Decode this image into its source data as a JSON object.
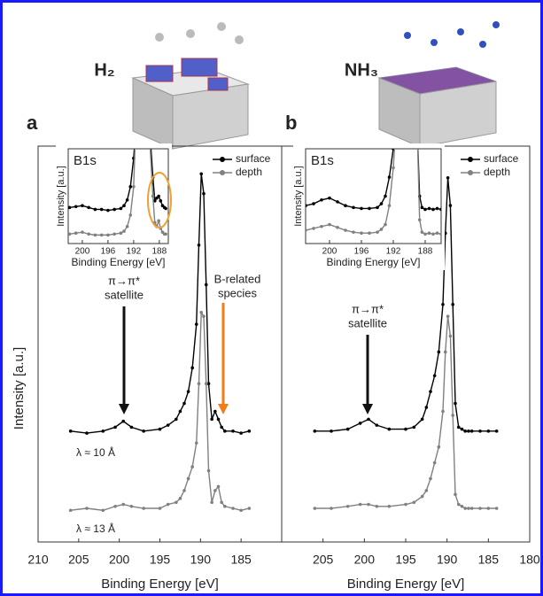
{
  "chart_data": [
    {
      "type": "line",
      "title": "a",
      "header": "H₂",
      "xlabel": "Binding Energy [eV]",
      "ylabel": "Intensity [a.u.]",
      "xlim": [
        210,
        180
      ],
      "ylim": [
        0,
        100
      ],
      "xticks": [
        210,
        205,
        200,
        195,
        190,
        185
      ],
      "annotations": [
        "π→π*",
        "satellite",
        "B-related",
        "species",
        "λ ≈ 10 Å",
        "λ ≈ 13 Å"
      ],
      "x": [
        206,
        204,
        202,
        200.5,
        199.5,
        198.5,
        197,
        195,
        194,
        193,
        192.5,
        192,
        191.5,
        191,
        190.5,
        190.2,
        189.9,
        189.6,
        189.3,
        189,
        188.6,
        188.2,
        187.8,
        187.4,
        187,
        186,
        185,
        184
      ],
      "series": [
        {
          "name": "surface",
          "color": "#000000",
          "values": [
            28,
            27.5,
            28,
            29,
            30.5,
            29,
            28,
            28.5,
            29.5,
            31,
            33,
            35,
            38,
            44,
            55,
            75,
            93,
            88,
            65,
            40,
            31,
            33,
            31,
            29,
            28,
            28,
            27.5,
            28
          ]
        },
        {
          "name": "depth",
          "color": "#808080",
          "values": [
            8,
            8.5,
            8,
            9,
            9.5,
            9,
            8.5,
            8.5,
            9.5,
            10,
            11,
            13,
            16,
            19,
            25,
            40,
            58,
            57,
            40,
            18,
            10,
            13,
            14,
            10,
            9,
            8.5,
            8,
            8.5
          ]
        }
      ]
    },
    {
      "type": "line",
      "title": "b",
      "header": "NH₃",
      "xlabel": "Binding Energy [eV]",
      "xlim": [
        210,
        180
      ],
      "ylim": [
        0,
        100
      ],
      "xticks": [
        205,
        200,
        195,
        190,
        185,
        180
      ],
      "annotations": [
        "π→π*",
        "satellite"
      ],
      "x": [
        206,
        204,
        202,
        200.5,
        199.5,
        198.5,
        197,
        195,
        194,
        193,
        192.5,
        192,
        191.5,
        191,
        190.5,
        190.2,
        189.9,
        189.6,
        189.3,
        189,
        188.6,
        188.2,
        187.8,
        187.4,
        187,
        186,
        185,
        184
      ],
      "series": [
        {
          "name": "surface",
          "color": "#000000",
          "values": [
            28,
            28,
            28.5,
            30,
            31,
            29.5,
            28.5,
            28.5,
            29,
            31,
            34,
            38,
            42,
            48,
            60,
            78,
            92,
            85,
            60,
            35,
            29,
            28.5,
            28,
            28,
            28,
            28,
            28,
            28
          ]
        },
        {
          "name": "depth",
          "color": "#808080",
          "values": [
            8.5,
            8.5,
            9,
            9.5,
            9.5,
            9,
            9,
            9.5,
            10,
            11.5,
            13,
            16,
            20,
            24,
            33,
            48,
            57,
            52,
            32,
            12,
            9.5,
            9,
            8.5,
            8.5,
            8.5,
            8.5,
            8.5,
            8.5
          ]
        }
      ]
    },
    {
      "type": "line",
      "title": "B1s",
      "xlabel": "Binding Energy [eV]",
      "ylabel": "Intensity [a.u.]",
      "xlim": [
        202.2,
        186.6
      ],
      "ylim": [
        0,
        100
      ],
      "xticks": [
        200,
        196,
        192,
        188
      ],
      "x": [
        202,
        201,
        200,
        199,
        198,
        197,
        196,
        195,
        194,
        193.5,
        193,
        192.5,
        192,
        191.7,
        190.5,
        189.5,
        189,
        188.7,
        188.4,
        188.1,
        187.8,
        187.5,
        187.2,
        187
      ],
      "series": [
        {
          "color": "#000000",
          "values": [
            38,
            39,
            40,
            38,
            36,
            36,
            35,
            36,
            37,
            40,
            46,
            60,
            90,
            120,
            null,
            120,
            70,
            45,
            48,
            50,
            45,
            40,
            38,
            37
          ]
        },
        {
          "color": "#808080",
          "values": [
            10,
            11,
            12,
            10,
            9,
            9,
            9,
            10,
            11,
            13,
            18,
            30,
            60,
            120,
            null,
            110,
            50,
            22,
            18,
            24,
            16,
            12,
            10,
            10
          ]
        }
      ]
    },
    {
      "type": "line",
      "title": "B1s",
      "xlabel": "Binding Energy [eV]",
      "ylabel": "Intensity [a.u.]",
      "xlim": [
        203,
        186
      ],
      "ylim": [
        0,
        100
      ],
      "xticks": [
        200,
        196,
        192,
        188
      ],
      "x": [
        203,
        202,
        201,
        200,
        199,
        198,
        197,
        196,
        195,
        194,
        193.5,
        193,
        192.5,
        192,
        191.7,
        190,
        189,
        188.7,
        188.4,
        188,
        187.5,
        187,
        186.5,
        186
      ],
      "series": [
        {
          "color": "#000000",
          "values": [
            40,
            42,
            46,
            48,
            44,
            40,
            38,
            37,
            37,
            38,
            42,
            50,
            70,
            100,
            120,
            null,
            120,
            50,
            38,
            36,
            37,
            36,
            37,
            36
          ]
        },
        {
          "color": "#808080",
          "values": [
            14,
            16,
            18,
            20,
            17,
            14,
            12,
            11,
            11,
            12,
            15,
            20,
            40,
            80,
            120,
            null,
            120,
            25,
            12,
            10,
            11,
            10,
            11,
            10
          ]
        }
      ]
    }
  ]
}
